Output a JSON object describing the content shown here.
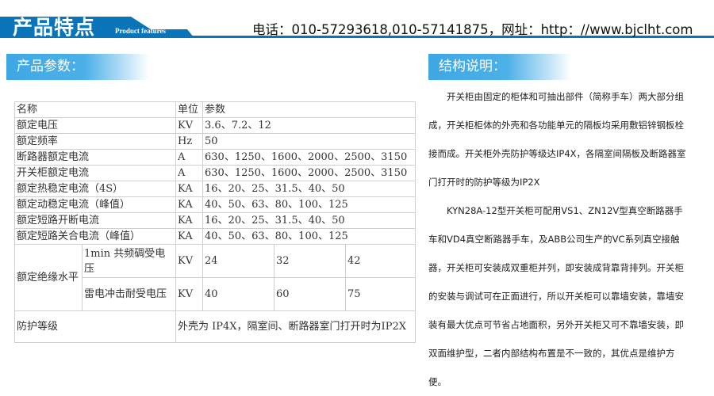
{
  "header": {
    "title": "产品特点",
    "subtitle": "Product features",
    "contact": "电话：010-57293618,010-57141875，网址：http：//www.bjclht.com",
    "accent": "#0a74b8"
  },
  "params": {
    "heading": "产品参数：",
    "columns": {
      "name": "名称",
      "unit": "单位",
      "value": "参数"
    },
    "rows": [
      {
        "name": "额定电压",
        "unit": "KV",
        "value": "3.6、7.2、12"
      },
      {
        "name": "额定频率",
        "unit": "Hz",
        "value": "50"
      },
      {
        "name": "断路器额定电流",
        "unit": "A",
        "value": "630、1250、1600、2000、2500、3150"
      },
      {
        "name": "开关柜额定电流",
        "unit": "A",
        "value": "630、1250、1600、2000、2500、3150"
      },
      {
        "name": "额定热稳定电流（4S）",
        "unit": "KA",
        "value": "16、20、25、31.5、40、50"
      },
      {
        "name": "额定动稳定电流（峰值）",
        "unit": "KA",
        "value": "40、50、63、80、100、125"
      },
      {
        "name": "额定短路开断电流",
        "unit": "KA",
        "value": "16、20、25、31.5、40、50"
      },
      {
        "name": "额定短路关合电流（峰值）",
        "unit": "KA",
        "value": "40、50、63、80、100、125"
      }
    ],
    "insulation": {
      "name": "额定绝缘水平",
      "sub": [
        {
          "name": "1min 共频碉受电压",
          "unit": "KV",
          "values": [
            "24",
            "32",
            "42"
          ]
        },
        {
          "name": "雷电冲击耐受电压",
          "unit": "KV",
          "values": [
            "40",
            "60",
            "75"
          ]
        }
      ]
    },
    "protection": {
      "name": "防护等级",
      "value": "外壳为 IP4X，隔室间、断路器室门打开时为IP2X"
    }
  },
  "structure": {
    "heading": "结构说明：",
    "paragraphs": [
      "开关柜由固定的柜体和可抽出部件（简称手车）两大部分组成，开关柜柜体的外壳和各功能单元的隔板均采用敷铝锌钢板栓接而成。开关柜外壳防护等级达IP4X，各隔室间隔板及断路器室门打开时的防护等级为IP2X",
      "KYN28A-12型开关柜可配用VS1、ZN12V型真空断路器手车和VD4真空断路器手车，及ABB公司生产的VC系列真空接触器，开关柜可安装成双重柜并列，即安装成背靠背排列。开关柜的安装与调试可在正面进行，所以开关柜可以靠墙安装，靠墙安装有最大优点可节省占地面积，另外开关柜又可不靠墙安装，即双面维护型，二者内部结构布置是不一致的，其优点是维护方便。"
    ]
  }
}
